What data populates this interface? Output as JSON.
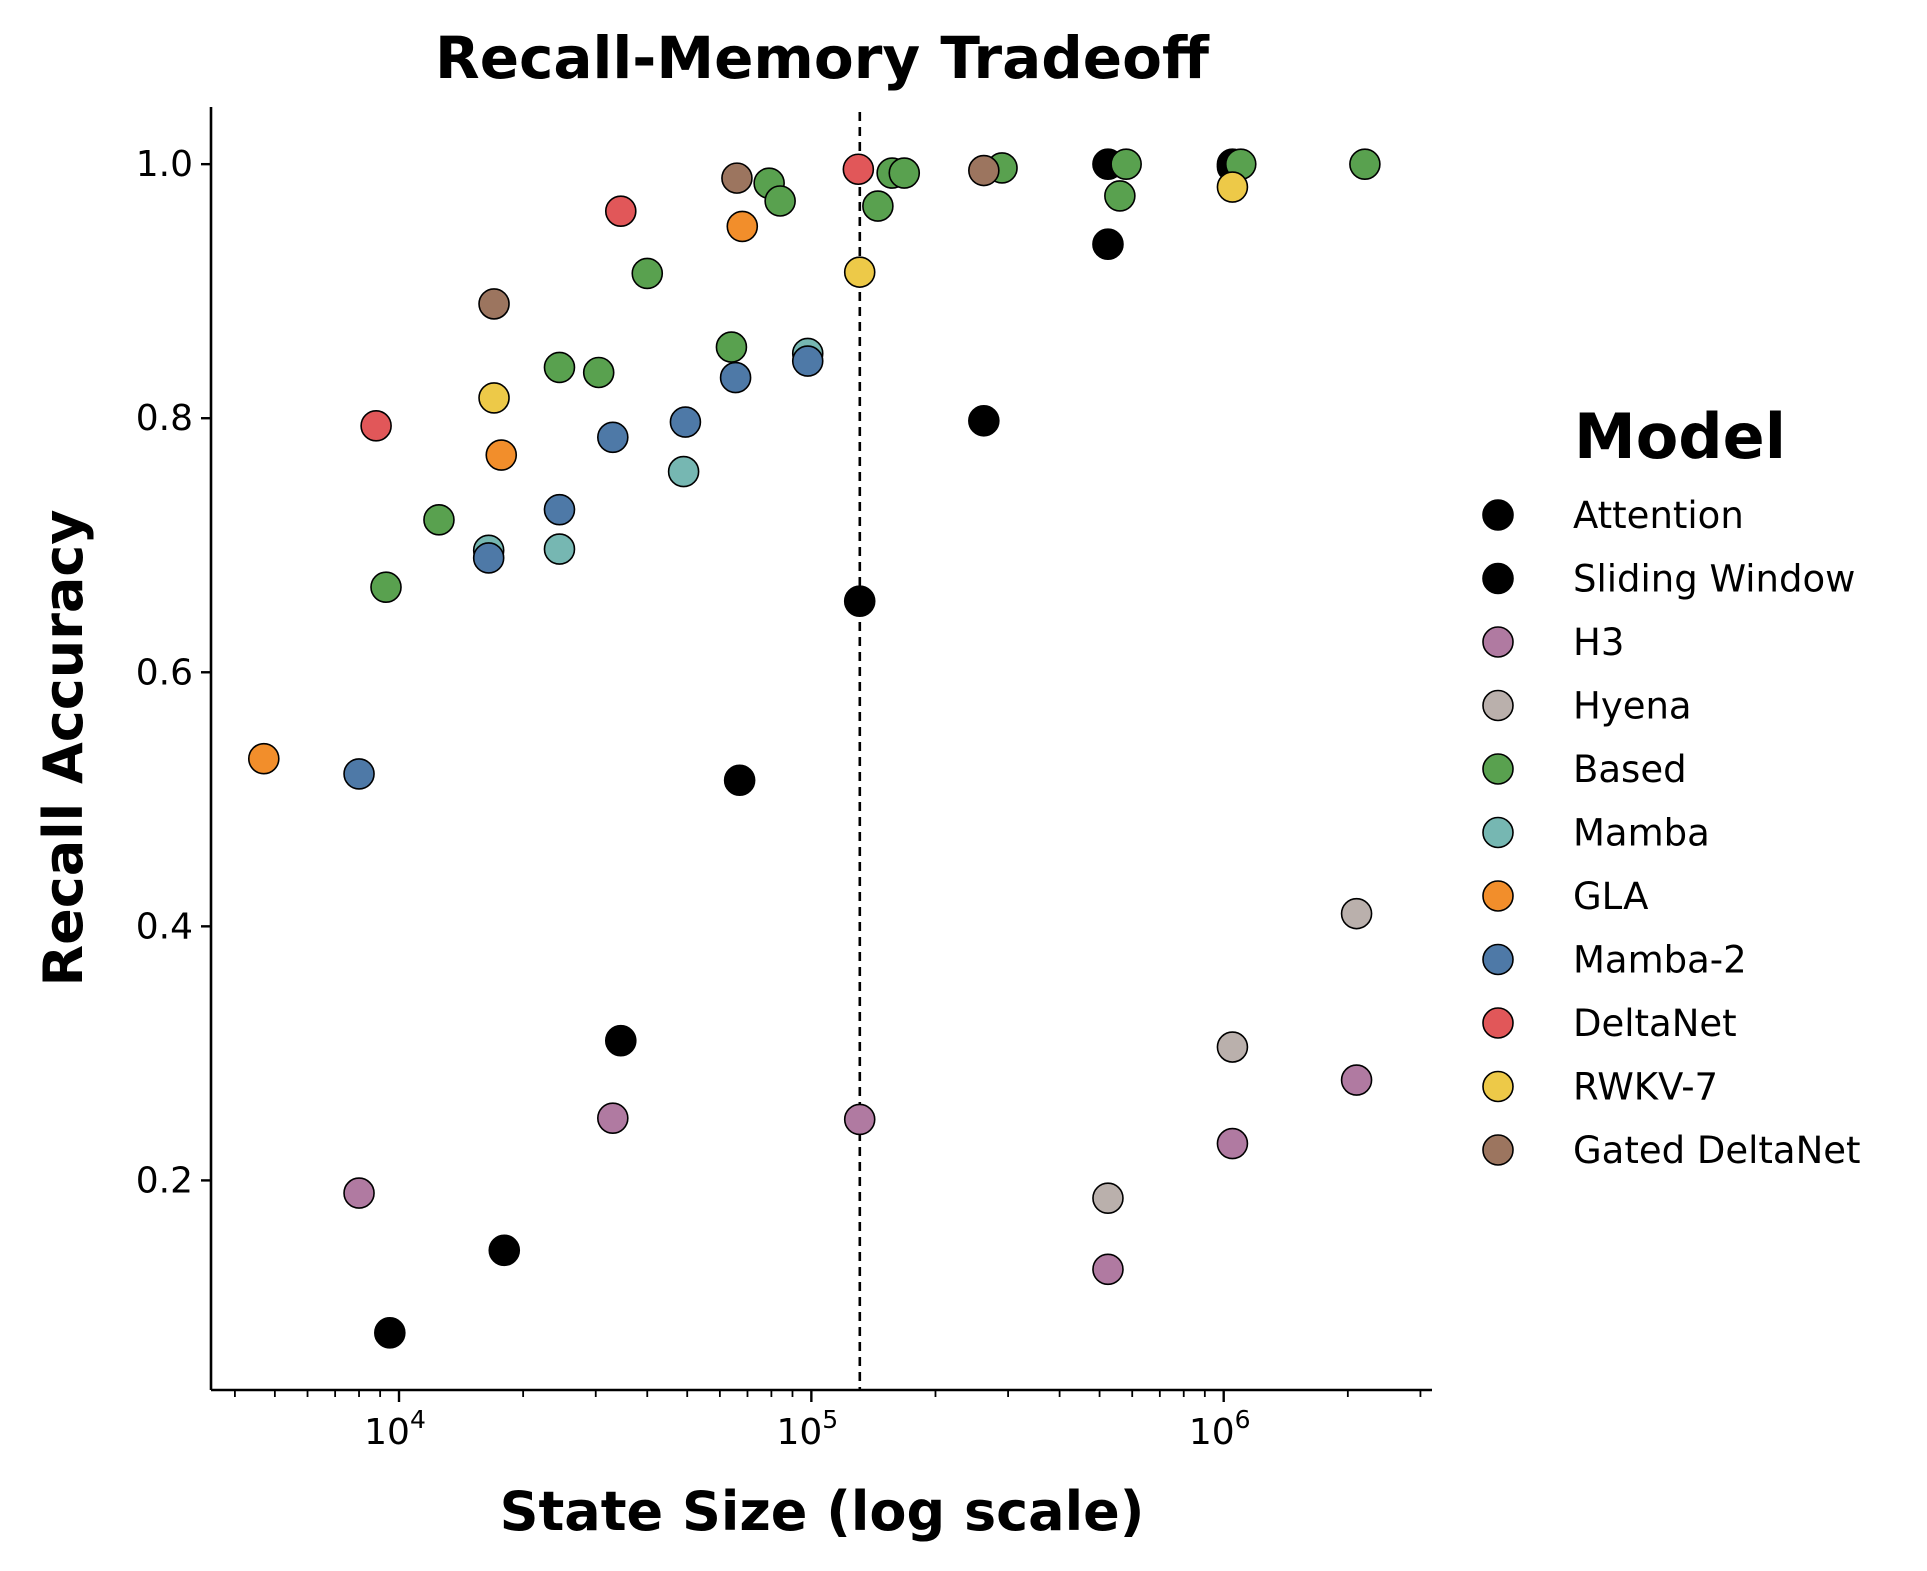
{
  "chart_data": {
    "type": "scatter",
    "title": "Recall-Memory Tradeoff",
    "xlabel": "State Size (log scale)",
    "ylabel": "Recall Accuracy",
    "xscale": "log",
    "xlim": [
      3500,
      3200000
    ],
    "ylim": [
      0.035,
      1.045
    ],
    "x_ticks": [
      {
        "base": "10",
        "exp": "4",
        "value": 10000
      },
      {
        "base": "10",
        "exp": "5",
        "value": 100000
      },
      {
        "base": "10",
        "exp": "6",
        "value": 1000000
      }
    ],
    "y_ticks": [
      "0.2",
      "0.4",
      "0.6",
      "0.8",
      "1.0"
    ],
    "vline": {
      "x": 131072,
      "style": "dashed"
    },
    "grid": false,
    "legend": {
      "title": "Model",
      "placement": "right"
    },
    "series": [
      {
        "name": "Attention",
        "color": "#000000",
        "edge": "#000000",
        "points": [
          [
            9500,
            0.08
          ],
          [
            18000,
            0.145
          ],
          [
            34500,
            0.31
          ],
          [
            67000,
            0.515
          ],
          [
            131000,
            0.656
          ],
          [
            262000,
            0.798
          ],
          [
            524000,
            0.937
          ],
          [
            524000,
            1.0
          ],
          [
            1050000,
            1.0
          ]
        ]
      },
      {
        "name": "Sliding Window",
        "color": "#000000",
        "edge": "#000000",
        "points": [
          [
            1050000,
            0.998
          ]
        ]
      },
      {
        "name": "H3",
        "color": "#b07aa1",
        "edge": "#000000",
        "points": [
          [
            8000,
            0.19
          ],
          [
            33000,
            0.249
          ],
          [
            131000,
            0.248
          ],
          [
            524000,
            0.13
          ],
          [
            1050000,
            0.229
          ],
          [
            2100000,
            0.279
          ]
        ]
      },
      {
        "name": "Hyena",
        "color": "#bab0ac",
        "edge": "#000000",
        "points": [
          [
            524000,
            0.186
          ],
          [
            1050000,
            0.305
          ],
          [
            2100000,
            0.41
          ]
        ]
      },
      {
        "name": "Based",
        "color": "#59a14f",
        "edge": "#000000",
        "points": [
          [
            9300,
            0.667
          ],
          [
            12500,
            0.72
          ],
          [
            24500,
            0.84
          ],
          [
            30500,
            0.836
          ],
          [
            40000,
            0.914
          ],
          [
            64000,
            0.856
          ],
          [
            79000,
            0.985
          ],
          [
            84000,
            0.971
          ],
          [
            145000,
            0.967
          ],
          [
            157000,
            0.993
          ],
          [
            168000,
            0.993
          ],
          [
            290000,
            0.997
          ],
          [
            560000,
            0.975
          ],
          [
            580000,
            1.0
          ],
          [
            1100000,
            1.0
          ],
          [
            2200000,
            1.0
          ]
        ]
      },
      {
        "name": "Mamba",
        "color": "#76b7b2",
        "edge": "#000000",
        "points": [
          [
            16500,
            0.696
          ],
          [
            24500,
            0.697
          ],
          [
            49000,
            0.758
          ],
          [
            98000,
            0.851
          ]
        ]
      },
      {
        "name": "GLA",
        "color": "#f28e2b",
        "edge": "#000000",
        "points": [
          [
            4700,
            0.532
          ],
          [
            17700,
            0.771
          ],
          [
            68000,
            0.951
          ]
        ]
      },
      {
        "name": "Mamba-2",
        "color": "#4e79a7",
        "edge": "#000000",
        "points": [
          [
            8000,
            0.52
          ],
          [
            16500,
            0.69
          ],
          [
            24500,
            0.728
          ],
          [
            33000,
            0.785
          ],
          [
            49500,
            0.797
          ],
          [
            65500,
            0.832
          ],
          [
            98000,
            0.845
          ]
        ]
      },
      {
        "name": "DeltaNet",
        "color": "#e15759",
        "edge": "#000000",
        "points": [
          [
            8800,
            0.794
          ],
          [
            34500,
            0.963
          ],
          [
            130000,
            0.996
          ]
        ]
      },
      {
        "name": "RWKV-7",
        "color": "#edc948",
        "edge": "#000000",
        "points": [
          [
            17000,
            0.816
          ],
          [
            131000,
            0.915
          ],
          [
            1050000,
            0.982
          ]
        ]
      },
      {
        "name": "Gated DeltaNet",
        "color": "#9c755f",
        "edge": "#000000",
        "points": [
          [
            17000,
            0.89
          ],
          [
            66000,
            0.989
          ],
          [
            262000,
            0.995
          ]
        ]
      }
    ]
  }
}
